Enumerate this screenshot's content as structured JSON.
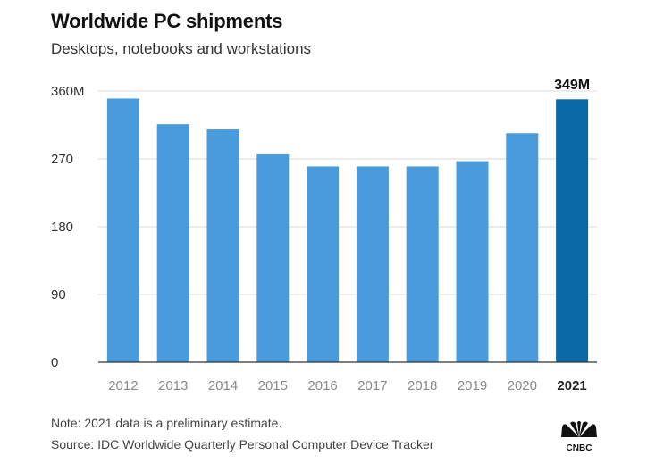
{
  "header": {
    "title": "Worldwide PC shipments",
    "subtitle": "Desktops, notebooks and workstations"
  },
  "footer": {
    "note": "Note: 2021 data is a preliminary estimate.",
    "source": "Source: IDC Worldwide Quarterly Personal Computer Device Tracker",
    "logo_text": "CNBC"
  },
  "colors": {
    "bar": "#4a9bdb",
    "highlight": "#0b6aa6",
    "grid": "#d9d9d9",
    "axis": "#333333"
  },
  "chart_data": {
    "type": "bar",
    "title": "Worldwide PC shipments",
    "subtitle": "Desktops, notebooks and workstations",
    "categories": [
      "2012",
      "2013",
      "2014",
      "2015",
      "2016",
      "2017",
      "2018",
      "2019",
      "2020",
      "2021"
    ],
    "values": [
      350,
      316,
      309,
      276,
      260,
      260,
      260,
      267,
      304,
      349
    ],
    "highlight_category": "2021",
    "data_labels": [
      {
        "category": "2021",
        "text": "349M"
      }
    ],
    "yticks": [
      0,
      90,
      180,
      270,
      360
    ],
    "ytick_labels": [
      "0",
      "90",
      "180",
      "270",
      "360M"
    ],
    "ylim": [
      0,
      360
    ],
    "xlabel": "",
    "ylabel": "",
    "grid": true
  }
}
